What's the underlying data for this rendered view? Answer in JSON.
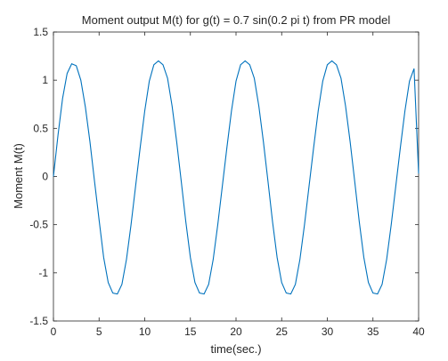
{
  "chart_data": {
    "type": "line",
    "title": "Moment output M(t)  for  g(t) = 0.7 sin(0.2 pi t)  from PR model",
    "xlabel": "time(sec.)",
    "ylabel": "Moment  M(t)",
    "xlim": [
      0,
      40
    ],
    "ylim": [
      -1.5,
      1.5
    ],
    "xticks": [
      0,
      5,
      10,
      15,
      20,
      25,
      30,
      35,
      40
    ],
    "yticks": [
      -1.5,
      -1,
      -0.5,
      0,
      0.5,
      1,
      1.5
    ],
    "xtick_labels": [
      "0",
      "5",
      "10",
      "15",
      "20",
      "25",
      "30",
      "35",
      "40"
    ],
    "ytick_labels": [
      "-1.5",
      "-1",
      "-0.5",
      "0",
      "0.5",
      "1",
      "1.5"
    ],
    "grid": false,
    "colors": {
      "line": "#0072BD",
      "axes": "#262626"
    },
    "series": [
      {
        "x": [
          0,
          0.5,
          1,
          1.5,
          2,
          2.5,
          3,
          3.5,
          4,
          4.5,
          5,
          5.5,
          6,
          6.5,
          7,
          7.5,
          8,
          8.5,
          9,
          9.5,
          10,
          10.5,
          11,
          11.5,
          12,
          12.5,
          13,
          13.5,
          14,
          14.5,
          15,
          15.5,
          16,
          16.5,
          17,
          17.5,
          18,
          18.5,
          19,
          19.5,
          20,
          20.5,
          21,
          21.5,
          22,
          22.5,
          23,
          23.5,
          24,
          24.5,
          25,
          25.5,
          26,
          26.5,
          27,
          27.5,
          28,
          28.5,
          29,
          29.5,
          30,
          30.5,
          31,
          31.5,
          32,
          32.5,
          33,
          33.5,
          34,
          34.5,
          35,
          35.5,
          36,
          36.5,
          37,
          37.5,
          38,
          38.5,
          39,
          39.5,
          40
        ],
        "values": [
          0,
          0.43,
          0.81,
          1.07,
          1.17,
          1.15,
          1.0,
          0.72,
          0.36,
          -0.05,
          -0.45,
          -0.84,
          -1.1,
          -1.21,
          -1.22,
          -1.12,
          -0.86,
          -0.5,
          -0.1,
          0.3,
          0.68,
          0.99,
          1.16,
          1.2,
          1.16,
          1.02,
          0.73,
          0.36,
          -0.05,
          -0.47,
          -0.84,
          -1.1,
          -1.21,
          -1.22,
          -1.12,
          -0.86,
          -0.5,
          -0.1,
          0.3,
          0.68,
          0.99,
          1.16,
          1.2,
          1.16,
          1.02,
          0.73,
          0.36,
          -0.05,
          -0.47,
          -0.84,
          -1.1,
          -1.21,
          -1.22,
          -1.12,
          -0.86,
          -0.5,
          -0.1,
          0.3,
          0.68,
          0.99,
          1.16,
          1.2,
          1.16,
          1.02,
          0.73,
          0.36,
          -0.05,
          -0.47,
          -0.84,
          -1.1,
          -1.21,
          -1.22,
          -1.12,
          -0.86,
          -0.5,
          -0.1,
          0.3,
          0.68,
          0.99,
          1.12,
          0.03
        ]
      }
    ]
  }
}
